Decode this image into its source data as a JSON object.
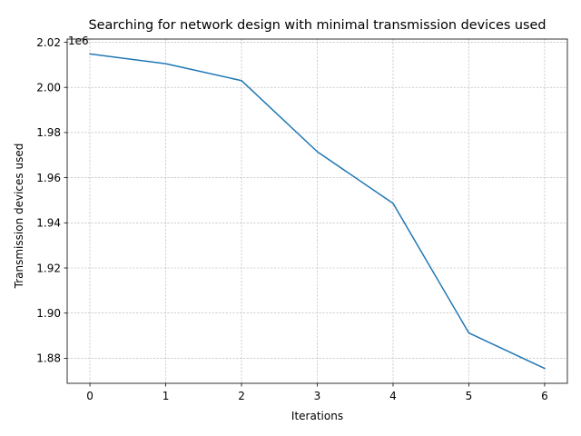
{
  "chart_data": {
    "type": "line",
    "title": "Searching for network design with minimal transmission devices used",
    "xlabel": "Iterations",
    "ylabel": "Transmission devices used",
    "y_offset_label": "1e6",
    "x": [
      0,
      1,
      2,
      3,
      4,
      5,
      6
    ],
    "series": [
      {
        "values": [
          2.0148,
          2.0105,
          2.003,
          1.9715,
          1.9486,
          1.8912,
          1.8755
        ],
        "color": "#1f77b4"
      }
    ],
    "xlim": [
      -0.3,
      6.3
    ],
    "ylim": [
      1.8689,
      2.0214
    ],
    "xticks": [
      0,
      1,
      2,
      3,
      4,
      5,
      6
    ],
    "xtick_labels": [
      "0",
      "1",
      "2",
      "3",
      "4",
      "5",
      "6"
    ],
    "yticks": [
      1.88,
      1.9,
      1.92,
      1.94,
      1.96,
      1.98,
      2.0,
      2.02
    ],
    "ytick_labels": [
      "1.88",
      "1.90",
      "1.92",
      "1.94",
      "1.96",
      "1.98",
      "2.00",
      "2.02"
    ],
    "grid": true,
    "scale_factor": 1000000
  }
}
